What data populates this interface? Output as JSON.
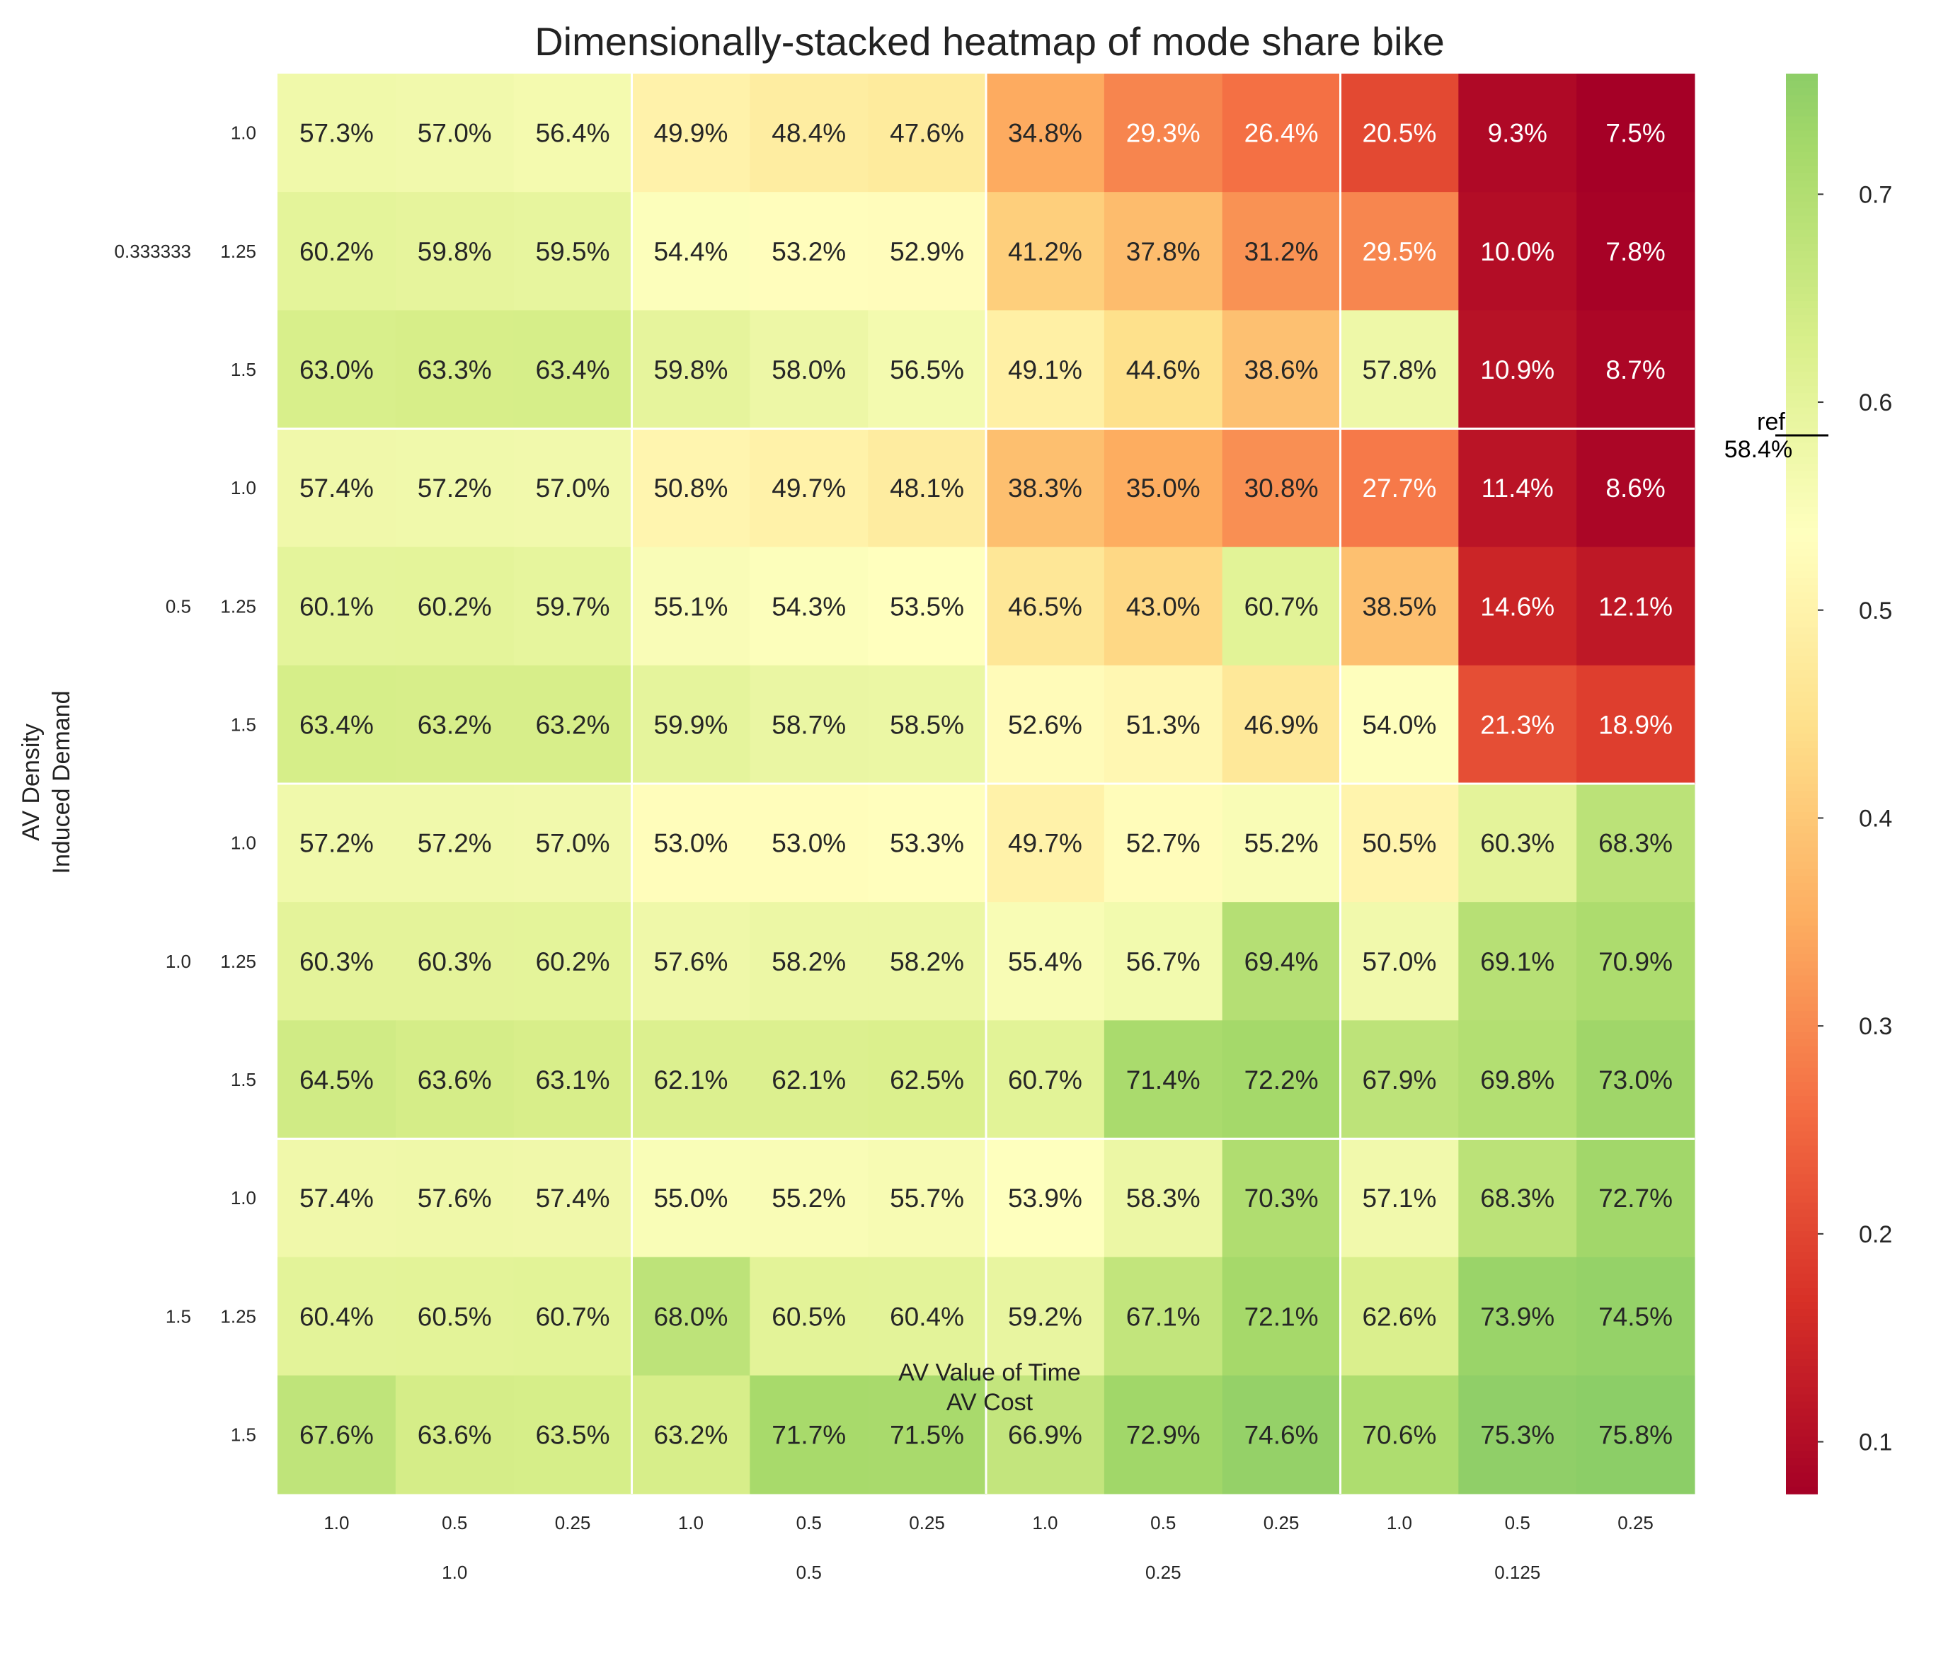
{
  "chart_data": {
    "type": "heatmap",
    "title": "Dimensionally-stacked heatmap of mode share bike",
    "ylabel": [
      "AV Density",
      "Induced Demand"
    ],
    "xlabel": [
      "AV Value of Time",
      "AV Cost"
    ],
    "x_outer": [
      "1.0",
      "0.5",
      "0.25",
      "0.125"
    ],
    "x_inner": [
      "1.0",
      "0.5",
      "0.25"
    ],
    "y_outer": [
      "0.333333",
      "0.5",
      "1.0",
      "1.5"
    ],
    "y_inner": [
      "1.0",
      "1.25",
      "1.5"
    ],
    "values": [
      [
        57.3,
        57.0,
        56.4,
        49.9,
        48.4,
        47.6,
        34.8,
        29.3,
        26.4,
        20.5,
        9.3,
        7.5
      ],
      [
        60.2,
        59.8,
        59.5,
        54.4,
        53.2,
        52.9,
        41.2,
        37.8,
        31.2,
        29.5,
        10.0,
        7.8
      ],
      [
        63.0,
        63.3,
        63.4,
        59.8,
        58.0,
        56.5,
        49.1,
        44.6,
        38.6,
        57.8,
        10.9,
        8.7
      ],
      [
        57.4,
        57.2,
        57.0,
        50.8,
        49.7,
        48.1,
        38.3,
        35.0,
        30.8,
        27.7,
        11.4,
        8.6
      ],
      [
        60.1,
        60.2,
        59.7,
        55.1,
        54.3,
        53.5,
        46.5,
        43.0,
        60.7,
        38.5,
        14.6,
        12.1
      ],
      [
        63.4,
        63.2,
        63.2,
        59.9,
        58.7,
        58.5,
        52.6,
        51.3,
        46.9,
        54.0,
        21.3,
        18.9
      ],
      [
        57.2,
        57.2,
        57.0,
        53.0,
        53.0,
        53.3,
        49.7,
        52.7,
        55.2,
        50.5,
        60.3,
        68.3
      ],
      [
        60.3,
        60.3,
        60.2,
        57.6,
        58.2,
        58.2,
        55.4,
        56.7,
        69.4,
        57.0,
        69.1,
        70.9
      ],
      [
        64.5,
        63.6,
        63.1,
        62.1,
        62.1,
        62.5,
        60.7,
        71.4,
        72.2,
        67.9,
        69.8,
        73.0
      ],
      [
        57.4,
        57.6,
        57.4,
        55.0,
        55.2,
        55.7,
        53.9,
        58.3,
        70.3,
        57.1,
        68.3,
        72.7
      ],
      [
        60.4,
        60.5,
        60.7,
        68.0,
        60.5,
        60.4,
        59.2,
        67.1,
        72.1,
        62.6,
        73.9,
        74.5
      ],
      [
        67.6,
        63.6,
        63.5,
        63.2,
        71.7,
        71.5,
        66.9,
        72.9,
        74.6,
        70.6,
        75.3,
        75.8
      ]
    ],
    "value_suffix": "%",
    "colorscale": "RdYlGn",
    "color_range": [
      0.075,
      0.758
    ],
    "colorbar_ticks": [
      "0.1",
      "0.2",
      "0.3",
      "0.4",
      "0.5",
      "0.6",
      "0.7"
    ],
    "reference": {
      "label": "ref",
      "value": 0.584,
      "value_label": "58.4%"
    },
    "grid": false,
    "group_separators": true
  }
}
